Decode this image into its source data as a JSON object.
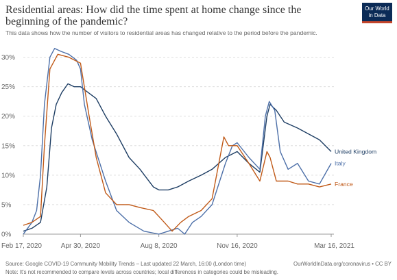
{
  "header": {
    "title": "Residential areas: How did the time spent at home change since the beginning of the pandemic?",
    "subtitle": "This data shows how the number of visitors to residential areas has changed relative to the period before the pandemic.",
    "logo_line1": "Our World",
    "logo_line2": "in Data"
  },
  "footer": {
    "source": "Source: Google COVID-19 Community Mobility Trends – Last updated 22 March, 16:00 (London time)",
    "credit": "OurWorldInData.org/coronavirus • CC BY",
    "note": "Note: It's not recommended to compare levels across countries; local differences in categories could be misleading."
  },
  "colors": {
    "united_kingdom": "#1d3d63",
    "italy": "#4c6fa8",
    "france": "#c05917",
    "grid": "#dddddd",
    "axis": "#999999"
  },
  "chart_data": {
    "type": "line",
    "title": "Residential areas: How did the time spent at home change since the beginning of the pandemic?",
    "xlabel": "",
    "ylabel": "",
    "x_range": [
      "2020-02-17",
      "2021-03-16"
    ],
    "ylim": [
      0,
      31
    ],
    "y_ticks": [
      0,
      5,
      10,
      15,
      20,
      25,
      30
    ],
    "y_tick_labels": [
      "0%",
      "5%",
      "10%",
      "15%",
      "20%",
      "25%",
      "30%"
    ],
    "x_ticks": [
      "2020-02-17",
      "2020-04-30",
      "2020-08-08",
      "2020-11-16",
      "2021-03-16"
    ],
    "x_tick_labels": [
      "Feb 17, 2020",
      "Apr 30, 2020",
      "Aug 8, 2020",
      "Nov 16, 2020",
      "Mar 16, 2021"
    ],
    "grid": "horizontal dashed",
    "legend": "labels at line ends (right)",
    "series": [
      {
        "name": "United Kingdom",
        "points": [
          [
            "2020-02-17",
            0.5
          ],
          [
            "2020-02-28",
            1
          ],
          [
            "2020-03-10",
            2
          ],
          [
            "2020-03-18",
            8
          ],
          [
            "2020-03-24",
            18
          ],
          [
            "2020-03-30",
            22
          ],
          [
            "2020-04-06",
            24
          ],
          [
            "2020-04-14",
            25.5
          ],
          [
            "2020-04-22",
            25
          ],
          [
            "2020-04-30",
            25
          ],
          [
            "2020-05-10",
            24
          ],
          [
            "2020-05-20",
            23
          ],
          [
            "2020-06-01",
            20
          ],
          [
            "2020-06-15",
            17
          ],
          [
            "2020-07-01",
            13
          ],
          [
            "2020-07-15",
            11
          ],
          [
            "2020-08-01",
            8
          ],
          [
            "2020-08-08",
            7.5
          ],
          [
            "2020-08-20",
            7.5
          ],
          [
            "2020-09-01",
            8
          ],
          [
            "2020-09-15",
            9
          ],
          [
            "2020-10-01",
            10
          ],
          [
            "2020-10-15",
            11
          ],
          [
            "2020-11-01",
            13
          ],
          [
            "2020-11-16",
            14
          ],
          [
            "2020-12-01",
            12
          ],
          [
            "2020-12-15",
            10.5
          ],
          [
            "2020-12-24",
            20
          ],
          [
            "2020-12-28",
            22
          ],
          [
            "2021-01-05",
            21
          ],
          [
            "2021-01-15",
            19
          ],
          [
            "2021-02-01",
            18
          ],
          [
            "2021-02-15",
            17
          ],
          [
            "2021-03-01",
            16
          ],
          [
            "2021-03-16",
            14
          ]
        ]
      },
      {
        "name": "Italy",
        "points": [
          [
            "2020-02-17",
            0
          ],
          [
            "2020-02-28",
            2
          ],
          [
            "2020-03-05",
            4
          ],
          [
            "2020-03-10",
            10
          ],
          [
            "2020-03-15",
            22
          ],
          [
            "2020-03-22",
            30
          ],
          [
            "2020-03-28",
            31.5
          ],
          [
            "2020-04-05",
            31
          ],
          [
            "2020-04-15",
            30.5
          ],
          [
            "2020-04-25",
            29.5
          ],
          [
            "2020-04-30",
            28
          ],
          [
            "2020-05-05",
            22
          ],
          [
            "2020-05-15",
            16
          ],
          [
            "2020-06-01",
            9
          ],
          [
            "2020-06-15",
            4
          ],
          [
            "2020-07-01",
            2
          ],
          [
            "2020-07-20",
            0.5
          ],
          [
            "2020-08-08",
            0
          ],
          [
            "2020-08-20",
            0.5
          ],
          [
            "2020-09-01",
            1
          ],
          [
            "2020-09-10",
            0
          ],
          [
            "2020-09-20",
            2
          ],
          [
            "2020-10-01",
            3
          ],
          [
            "2020-10-15",
            5
          ],
          [
            "2020-11-01",
            12
          ],
          [
            "2020-11-10",
            15
          ],
          [
            "2020-11-16",
            15.5
          ],
          [
            "2020-12-01",
            13
          ],
          [
            "2020-12-15",
            11
          ],
          [
            "2020-12-22",
            20
          ],
          [
            "2020-12-27",
            22.5
          ],
          [
            "2021-01-03",
            21
          ],
          [
            "2021-01-10",
            14
          ],
          [
            "2021-01-20",
            11
          ],
          [
            "2021-02-01",
            12
          ],
          [
            "2021-02-15",
            9
          ],
          [
            "2021-03-01",
            8.5
          ],
          [
            "2021-03-16",
            12
          ]
        ]
      },
      {
        "name": "France",
        "points": [
          [
            "2020-02-17",
            1.5
          ],
          [
            "2020-02-28",
            2
          ],
          [
            "2020-03-10",
            3
          ],
          [
            "2020-03-15",
            15
          ],
          [
            "2020-03-22",
            28
          ],
          [
            "2020-04-01",
            30.5
          ],
          [
            "2020-04-15",
            30
          ],
          [
            "2020-04-30",
            29
          ],
          [
            "2020-05-11",
            20
          ],
          [
            "2020-05-20",
            13
          ],
          [
            "2020-06-01",
            7
          ],
          [
            "2020-06-15",
            5
          ],
          [
            "2020-07-01",
            5
          ],
          [
            "2020-07-15",
            4.5
          ],
          [
            "2020-08-01",
            4
          ],
          [
            "2020-08-08",
            3
          ],
          [
            "2020-08-15",
            2
          ],
          [
            "2020-08-25",
            0.5
          ],
          [
            "2020-09-05",
            2
          ],
          [
            "2020-09-15",
            3
          ],
          [
            "2020-10-01",
            4
          ],
          [
            "2020-10-15",
            6
          ],
          [
            "2020-10-30",
            16.5
          ],
          [
            "2020-11-05",
            15
          ],
          [
            "2020-11-16",
            15
          ],
          [
            "2020-12-01",
            12
          ],
          [
            "2020-12-15",
            9
          ],
          [
            "2020-12-24",
            14
          ],
          [
            "2020-12-28",
            13
          ],
          [
            "2021-01-05",
            9
          ],
          [
            "2021-01-20",
            9
          ],
          [
            "2021-02-01",
            8.5
          ],
          [
            "2021-02-15",
            8.5
          ],
          [
            "2021-03-01",
            8
          ],
          [
            "2021-03-16",
            8.5
          ]
        ]
      }
    ]
  }
}
